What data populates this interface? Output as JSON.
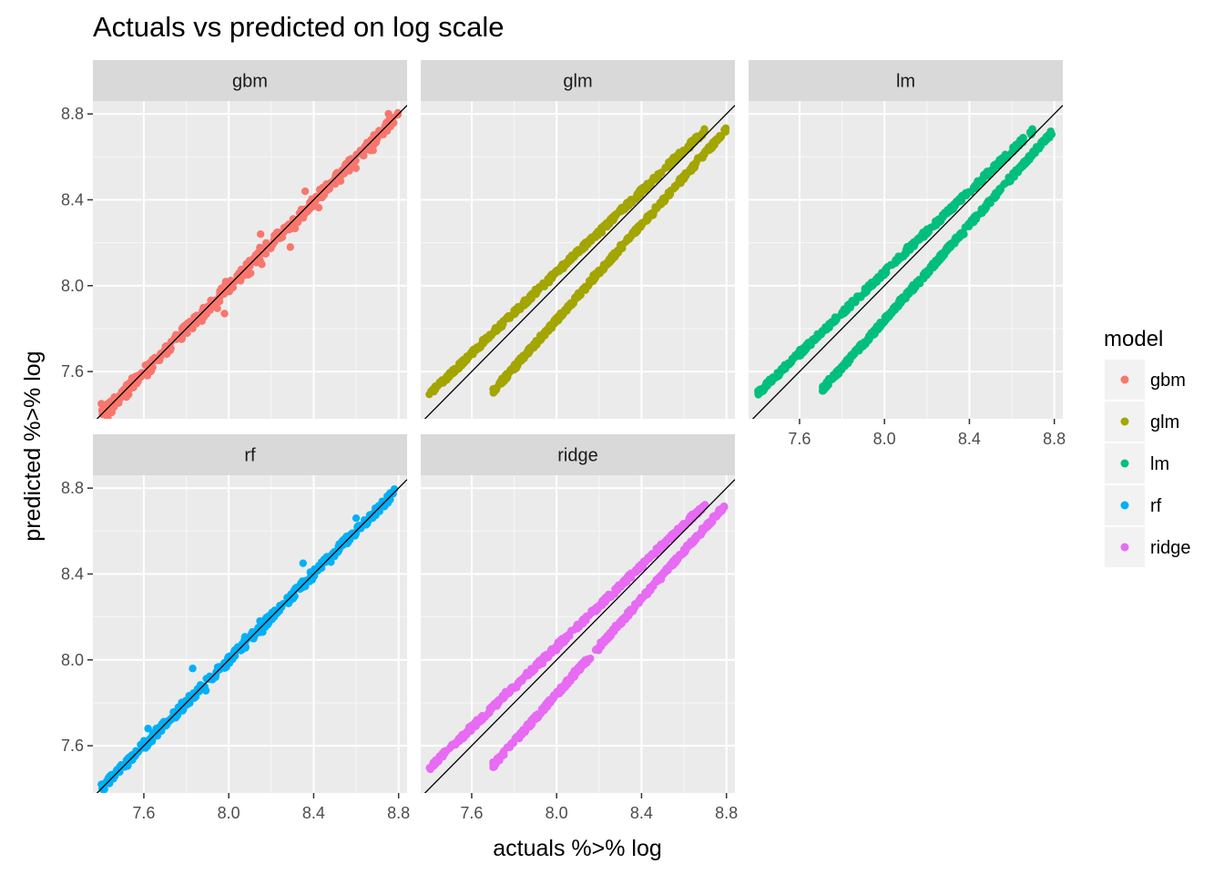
{
  "chart_data": {
    "type": "scatter",
    "title": "Actuals vs predicted on log scale",
    "xlabel": "actuals %>% log",
    "ylabel": "predicted %>% log",
    "xlim": [
      7.36,
      8.84
    ],
    "ylim": [
      7.38,
      8.86
    ],
    "xticks": [
      7.6,
      8.0,
      8.4,
      8.8
    ],
    "yticks": [
      7.6,
      8.0,
      8.4,
      8.8
    ],
    "tick_labels": [
      "7.6",
      "8.0",
      "8.4",
      "8.8"
    ],
    "reference_line": {
      "slope": 1,
      "intercept": 0,
      "color": "#000000"
    },
    "grid": true,
    "legend": {
      "title": "model",
      "position": "right",
      "entries": [
        "gbm",
        "glm",
        "lm",
        "rf",
        "ridge"
      ]
    },
    "panels": [
      {
        "name": "gbm",
        "color": "#F8766D",
        "series": [
          {
            "type": "band",
            "x_range": [
              7.4,
              8.8
            ],
            "slope": 1.0,
            "intercept": -0.005,
            "spread": 0.025,
            "jitter": 0.035
          }
        ],
        "points": [
          {
            "x": 7.4,
            "y": 7.45
          },
          {
            "x": 7.43,
            "y": 7.45
          },
          {
            "x": 7.98,
            "y": 7.87
          },
          {
            "x": 8.36,
            "y": 8.44
          },
          {
            "x": 8.29,
            "y": 8.18
          },
          {
            "x": 8.15,
            "y": 8.24
          }
        ]
      },
      {
        "name": "glm",
        "color": "#A3A500",
        "series": [
          {
            "type": "band",
            "x_range": [
              7.4,
              8.7
            ],
            "slope": 0.946,
            "intercept": 0.494,
            "spread": 0.012,
            "jitter": 0.006
          },
          {
            "type": "band",
            "x_range": [
              7.7,
              8.8
            ],
            "slope": 1.11,
            "intercept": -1.04,
            "spread": 0.012,
            "jitter": 0.006
          }
        ],
        "points": []
      },
      {
        "name": "lm",
        "color": "#00BF7D",
        "series": [
          {
            "type": "band",
            "x_range": [
              7.4,
              8.7
            ],
            "slope": 0.946,
            "intercept": 0.494,
            "spread": 0.012,
            "jitter": 0.006
          },
          {
            "type": "band",
            "x_range": [
              7.7,
              8.8
            ],
            "slope": 1.11,
            "intercept": -1.04,
            "spread": 0.012,
            "jitter": 0.006
          }
        ],
        "points": []
      },
      {
        "name": "rf",
        "color": "#00B0F6",
        "series": [
          {
            "type": "band",
            "x_range": [
              7.4,
              8.78
            ],
            "slope": 1.0,
            "intercept": 0.0,
            "spread": 0.02,
            "jitter": 0.022
          }
        ],
        "points": [
          {
            "x": 7.4,
            "y": 7.42
          },
          {
            "x": 7.83,
            "y": 7.96
          },
          {
            "x": 7.62,
            "y": 7.68
          },
          {
            "x": 8.35,
            "y": 8.45
          },
          {
            "x": 8.6,
            "y": 8.66
          }
        ]
      },
      {
        "name": "ridge",
        "color": "#E76BF3",
        "series": [
          {
            "type": "band",
            "x_range": [
              7.4,
              8.7
            ],
            "slope": 0.946,
            "intercept": 0.494,
            "spread": 0.012,
            "jitter": 0.006
          },
          {
            "type": "band",
            "x_range": [
              7.7,
              8.8
            ],
            "slope": 1.11,
            "intercept": -1.04,
            "spread": 0.012,
            "jitter": 0.006
          }
        ],
        "points": []
      }
    ]
  }
}
